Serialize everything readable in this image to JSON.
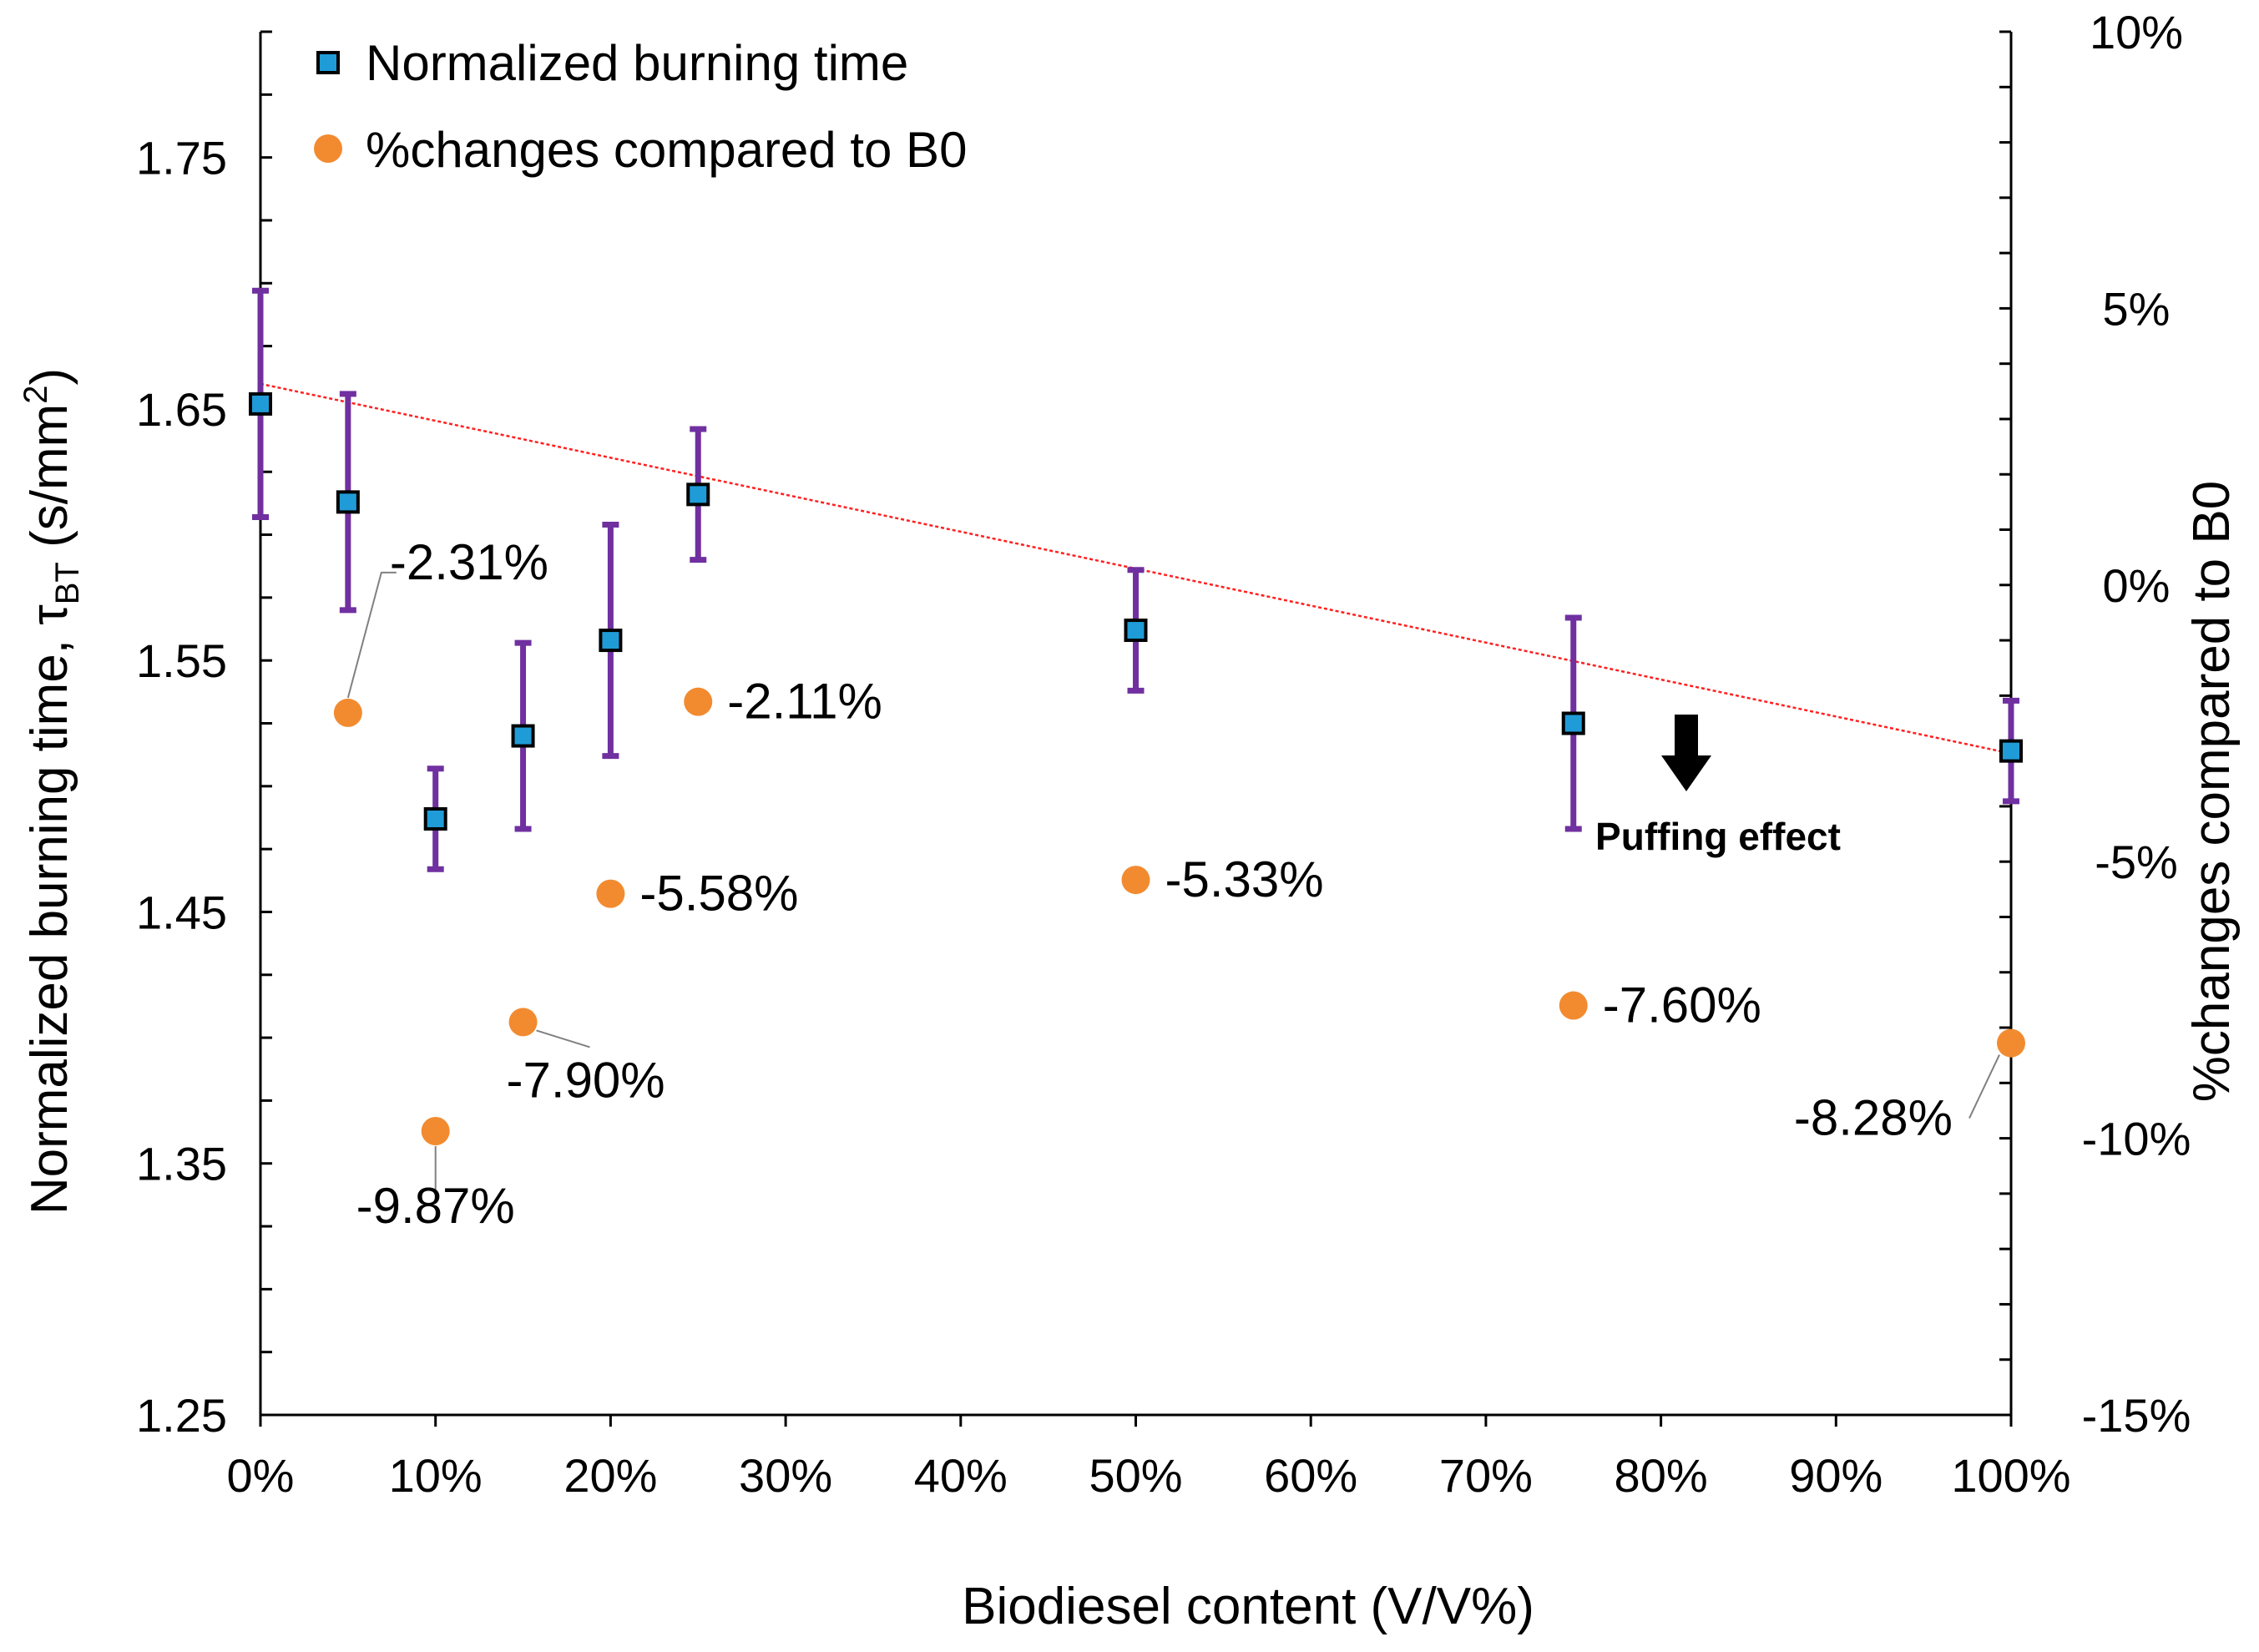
{
  "chart_data": {
    "type": "scatter",
    "title": "",
    "xlabel": "Biodiesel content (V/V%)",
    "ylabel_main": "Normalized burning time, τ",
    "ylabel_sub": "BT",
    "ylabel_unit_pre": " (s/mm",
    "ylabel_unit_sup": "2",
    "ylabel_unit_post": ")",
    "y2label": "%changes compared to B0",
    "xlim": [
      0,
      100
    ],
    "ylim": [
      1.25,
      1.8
    ],
    "y2lim": [
      -15,
      10
    ],
    "x_ticks": [
      "0%",
      "10%",
      "20%",
      "30%",
      "40%",
      "50%",
      "60%",
      "70%",
      "80%",
      "90%",
      "100%"
    ],
    "y_ticks": [
      "1.25",
      "1.35",
      "1.45",
      "1.55",
      "1.65",
      "1.75"
    ],
    "y2_ticks": [
      "-15%",
      "-10%",
      "-5%",
      "0%",
      "5%",
      "10%"
    ],
    "legend": {
      "position": "top-left",
      "items": [
        "Normalized burning time",
        "%changes compared to B0"
      ]
    },
    "series": [
      {
        "name": "Normalized burning time",
        "axis": "left",
        "marker": "square",
        "color": "#1f9bd7",
        "errorbar_color": "#7030a0",
        "x": [
          0,
          5,
          10,
          15,
          20,
          25,
          50,
          75,
          100
        ],
        "values": [
          1.652,
          1.613,
          1.487,
          1.52,
          1.558,
          1.616,
          1.562,
          1.525,
          1.514
        ],
        "errors": [
          0.045,
          0.043,
          0.02,
          0.037,
          0.046,
          0.026,
          0.024,
          0.042,
          0.02
        ]
      },
      {
        "name": "%changes compared to B0",
        "axis": "right",
        "marker": "circle",
        "color": "#f28b30",
        "x": [
          5,
          10,
          15,
          20,
          25,
          50,
          75,
          100
        ],
        "values": [
          -2.31,
          -9.87,
          -7.9,
          -5.58,
          -2.11,
          -5.33,
          -7.6,
          -8.28
        ],
        "labels": [
          "-2.31%",
          "-9.87%",
          "-7.90%",
          "-5.58%",
          "-2.11%",
          "-5.33%",
          "-7.60%",
          "-8.28%"
        ]
      }
    ],
    "trendline": {
      "color": "#ff2020",
      "x": [
        0,
        100
      ],
      "values": [
        1.66,
        1.513
      ]
    },
    "annotation": {
      "text": "Puffing effect",
      "x": 86,
      "y": 1.54
    }
  }
}
